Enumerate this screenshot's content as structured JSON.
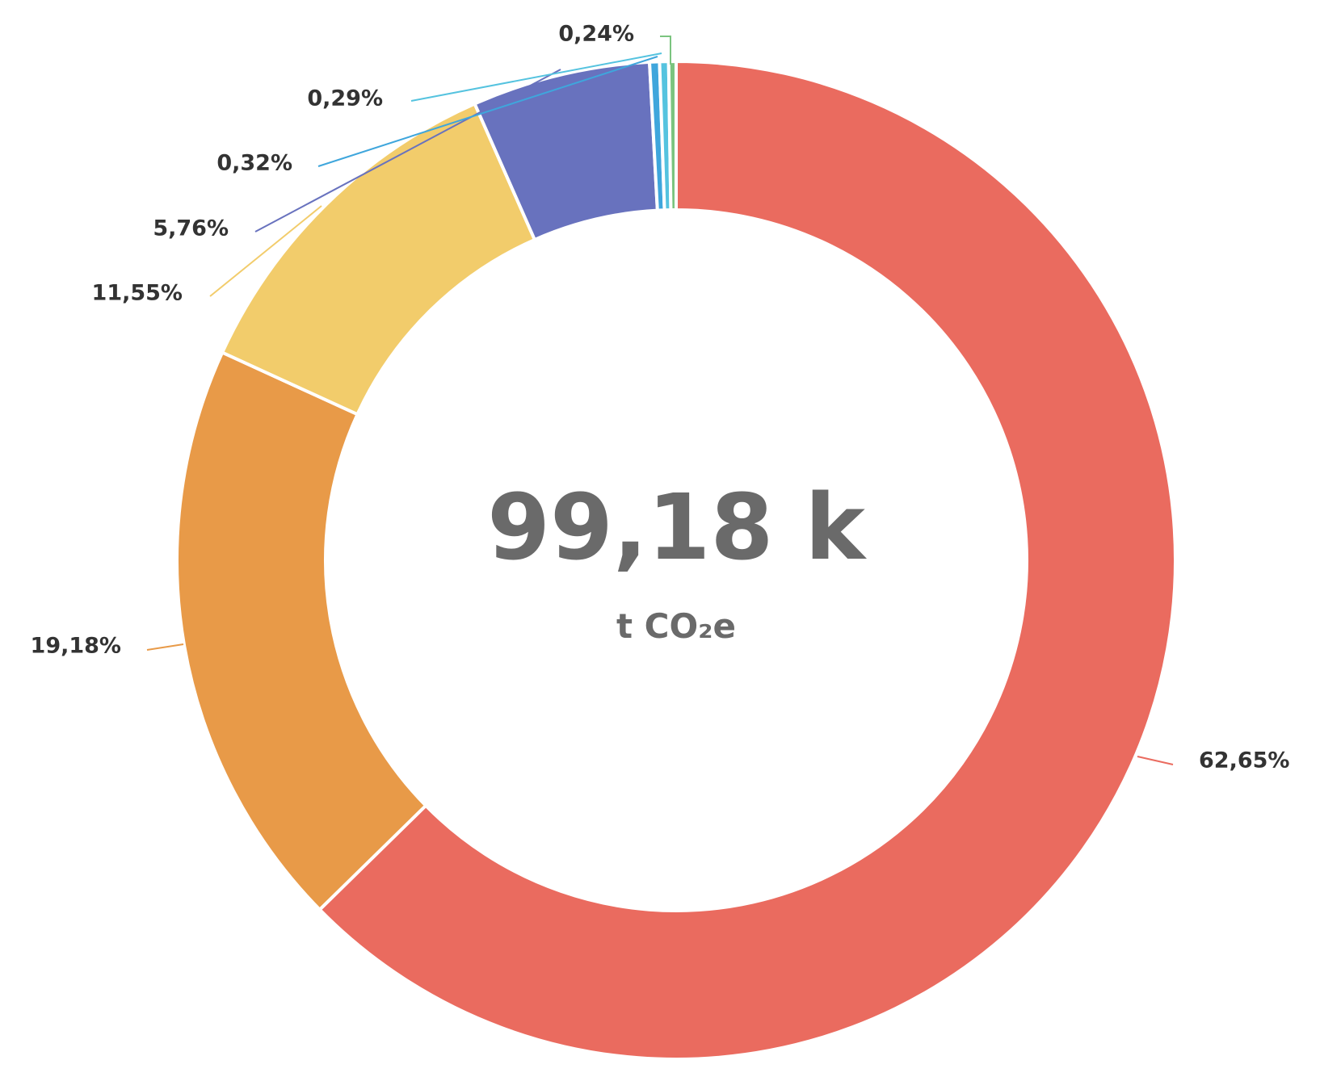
{
  "chart_data": {
    "type": "donut",
    "center_value": "99,18 k",
    "center_unit": "t CO₂e",
    "values": [
      62.65,
      19.18,
      11.55,
      5.76,
      0.32,
      0.29,
      0.24
    ],
    "value_labels": [
      "62,65%",
      "19,18%",
      "11,55%",
      "5,76%",
      "0,32%",
      "0,29%",
      "0,24%"
    ],
    "colors": [
      "#ea6b5f",
      "#e89a48",
      "#f2cc6b",
      "#6872be",
      "#3fa6dc",
      "#55c3df",
      "#7bc47f"
    ]
  }
}
